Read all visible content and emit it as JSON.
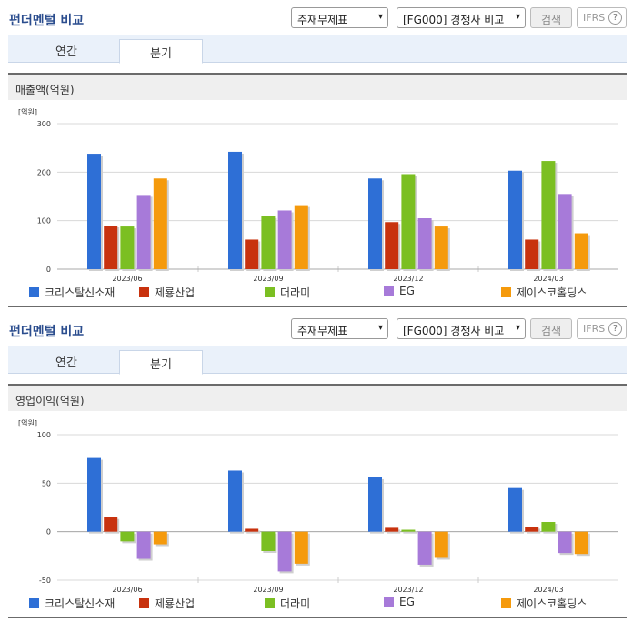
{
  "panels": [
    {
      "title": "펀더멘털 비교",
      "select1": "주재무제표",
      "select2": "[FG000] 경쟁사 비교",
      "search_label": "검색",
      "ifrs_label": "IFRS",
      "help_glyph": "?",
      "tabs": [
        "연간",
        "분기"
      ],
      "active_tab": "분기",
      "section_title": "매출액(억원)",
      "unit_label": "[억원]"
    },
    {
      "title": "펀더멘털 비교",
      "select1": "주재무제표",
      "select2": "[FG000] 경쟁사 비교",
      "search_label": "검색",
      "ifrs_label": "IFRS",
      "help_glyph": "?",
      "tabs": [
        "연간",
        "분기"
      ],
      "active_tab": "분기",
      "section_title": "영업이익(억원)",
      "unit_label": "[억원]"
    }
  ],
  "chart_data": [
    {
      "type": "bar",
      "title": "매출액(억원)",
      "ylabel": "[억원]",
      "ylim": [
        0,
        300
      ],
      "yticks": [
        0,
        100,
        200,
        300
      ],
      "categories": [
        "2023/06",
        "2023/09",
        "2023/12",
        "2024/03"
      ],
      "series": [
        {
          "name": "크리스탈신소재",
          "color": "#2e6fd6",
          "values": [
            238,
            242,
            187,
            203
          ]
        },
        {
          "name": "제룡산업",
          "color": "#c8320e",
          "values": [
            90,
            61,
            97,
            61
          ]
        },
        {
          "name": "더라미",
          "color": "#7bbf22",
          "values": [
            88,
            109,
            196,
            223
          ]
        },
        {
          "name": "EG",
          "color": "#a77ad9",
          "values": [
            153,
            121,
            105,
            155
          ]
        },
        {
          "name": "제이스코홀딩스",
          "color": "#f59a0c",
          "values": [
            187,
            132,
            88,
            74
          ]
        }
      ],
      "legend": "bottom"
    },
    {
      "type": "bar",
      "title": "영업이익(억원)",
      "ylabel": "[억원]",
      "ylim": [
        -50,
        100
      ],
      "yticks": [
        -50,
        0,
        50,
        100
      ],
      "categories": [
        "2023/06",
        "2023/09",
        "2023/12",
        "2024/03"
      ],
      "series": [
        {
          "name": "크리스탈신소재",
          "color": "#2e6fd6",
          "values": [
            76,
            63,
            56,
            45
          ]
        },
        {
          "name": "제룡산업",
          "color": "#c8320e",
          "values": [
            15,
            3,
            4,
            5
          ]
        },
        {
          "name": "더라미",
          "color": "#7bbf22",
          "values": [
            -10,
            -20,
            2,
            10
          ]
        },
        {
          "name": "EG",
          "color": "#a77ad9",
          "values": [
            -28,
            -41,
            -34,
            -22
          ]
        },
        {
          "name": "제이스코홀딩스",
          "color": "#f59a0c",
          "values": [
            -13,
            -33,
            -27,
            -23
          ]
        }
      ],
      "legend": "bottom"
    }
  ]
}
